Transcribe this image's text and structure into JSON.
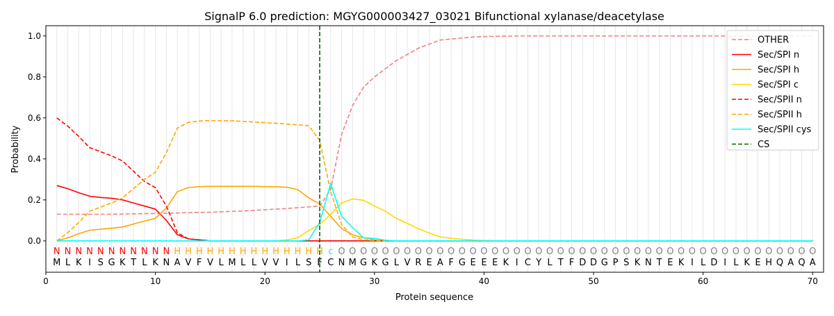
{
  "chart_data": {
    "type": "line",
    "title": "SignalP 6.0 prediction: MGYG000003427_03021 Bifunctional xylanase/deacetylase",
    "xlabel": "Protein sequence",
    "ylabel": "Probability",
    "xlim": [
      0,
      71
    ],
    "ylim": [
      -0.153,
      1.05
    ],
    "xticks": [
      0,
      10,
      20,
      30,
      40,
      50,
      60,
      70
    ],
    "yticks": [
      "0.0",
      "0.2",
      "0.4",
      "0.6",
      "0.8",
      "1.0"
    ],
    "legend_placement": "top-right",
    "sequence": [
      "M",
      "L",
      "K",
      "I",
      "S",
      "G",
      "K",
      "T",
      "L",
      "K",
      "N",
      "A",
      "V",
      "F",
      "V",
      "L",
      "M",
      "L",
      "L",
      "V",
      "V",
      "I",
      "L",
      "S",
      "F",
      "C",
      "N",
      "M",
      "G",
      "K",
      "G",
      "L",
      "V",
      "R",
      "E",
      "A",
      "F",
      "G",
      "E",
      "E",
      "E",
      "K",
      "I",
      "C",
      "Y",
      "L",
      "T",
      "F",
      "D",
      "D",
      "G",
      "P",
      "S",
      "K",
      "N",
      "T",
      "E",
      "K",
      "I",
      "L",
      "D",
      "I",
      "L",
      "K",
      "E",
      "H",
      "Q",
      "A",
      "Q",
      "A"
    ],
    "labels": [
      "N",
      "N",
      "N",
      "N",
      "N",
      "N",
      "N",
      "N",
      "N",
      "N",
      "N",
      "H",
      "H",
      "H",
      "H",
      "H",
      "H",
      "H",
      "H",
      "H",
      "H",
      "H",
      "H",
      "H",
      "H",
      "c",
      "O",
      "O",
      "O",
      "O",
      "O",
      "O",
      "O",
      "O",
      "O",
      "O",
      "O",
      "O",
      "O",
      "O",
      "O",
      "O",
      "O",
      "O",
      "O",
      "O",
      "O",
      "O",
      "O",
      "O",
      "O",
      "O",
      "O",
      "O",
      "O",
      "O",
      "O",
      "O",
      "O",
      "O",
      "O",
      "O",
      "O",
      "O",
      "O",
      "O",
      "O",
      "O",
      "O",
      "O"
    ],
    "label_colors": {
      "N": "#ff0000",
      "H": "#ffa500",
      "c": "#00ffff",
      "O": "#808080"
    },
    "cs_position": 25,
    "series": [
      {
        "name": "OTHER",
        "color": "#f08080",
        "dash": true,
        "values": [
          0.13,
          0.13,
          0.13,
          0.13,
          0.13,
          0.13,
          0.131,
          0.132,
          0.133,
          0.134,
          0.135,
          0.136,
          0.138,
          0.139,
          0.14,
          0.142,
          0.144,
          0.146,
          0.149,
          0.152,
          0.155,
          0.158,
          0.162,
          0.166,
          0.17,
          0.25,
          0.52,
          0.66,
          0.75,
          0.8,
          0.84,
          0.88,
          0.91,
          0.94,
          0.96,
          0.98,
          0.985,
          0.99,
          0.995,
          0.997,
          0.998,
          0.999,
          1,
          1,
          1,
          1,
          1,
          1,
          1,
          1,
          1,
          1,
          1,
          1,
          1,
          1,
          1,
          1,
          1,
          1,
          1,
          1,
          1,
          1,
          1,
          1,
          1,
          1,
          1,
          1
        ]
      },
      {
        "name": "Sec/SPI n",
        "color": "#ff0000",
        "dash": false,
        "values": [
          0.27,
          0.255,
          0.235,
          0.218,
          0.212,
          0.208,
          0.2,
          0.185,
          0.17,
          0.155,
          0.1,
          0.03,
          0.01,
          0.005,
          0,
          0,
          0,
          0,
          0,
          0,
          0,
          0,
          0,
          0,
          0,
          0,
          0,
          0,
          0,
          0,
          0,
          0,
          0,
          0,
          0,
          0,
          0,
          0,
          0,
          0,
          0,
          0,
          0,
          0,
          0,
          0,
          0,
          0,
          0,
          0,
          0,
          0,
          0,
          0,
          0,
          0,
          0,
          0,
          0,
          0,
          0,
          0,
          0,
          0,
          0,
          0,
          0,
          0,
          0,
          0
        ]
      },
      {
        "name": "Sec/SPI h",
        "color": "#ffa500",
        "dash": false,
        "values": [
          0,
          0.015,
          0.035,
          0.052,
          0.057,
          0.062,
          0.068,
          0.082,
          0.097,
          0.11,
          0.16,
          0.24,
          0.26,
          0.265,
          0.266,
          0.266,
          0.266,
          0.266,
          0.266,
          0.265,
          0.264,
          0.262,
          0.25,
          0.21,
          0.18,
          0.12,
          0.06,
          0.03,
          0.015,
          0.005,
          0,
          0,
          0,
          0,
          0,
          0,
          0,
          0,
          0,
          0,
          0,
          0,
          0,
          0,
          0,
          0,
          0,
          0,
          0,
          0,
          0,
          0,
          0,
          0,
          0,
          0,
          0,
          0,
          0,
          0,
          0,
          0,
          0,
          0,
          0,
          0,
          0,
          0,
          0,
          0
        ]
      },
      {
        "name": "Sec/SPI c",
        "color": "#ffd700",
        "dash": false,
        "values": [
          0,
          0,
          0,
          0,
          0,
          0,
          0,
          0,
          0,
          0,
          0,
          0,
          0,
          0,
          0,
          0,
          0,
          0,
          0,
          0,
          0,
          0.005,
          0.015,
          0.05,
          0.08,
          0.13,
          0.185,
          0.205,
          0.198,
          0.17,
          0.145,
          0.11,
          0.085,
          0.06,
          0.038,
          0.02,
          0.012,
          0.008,
          0.004,
          0.002,
          0,
          0,
          0,
          0,
          0,
          0,
          0,
          0,
          0,
          0,
          0,
          0,
          0,
          0,
          0,
          0,
          0,
          0,
          0,
          0,
          0,
          0,
          0,
          0,
          0,
          0,
          0,
          0,
          0,
          0
        ]
      },
      {
        "name": "Sec/SPII n",
        "color": "#ff0000",
        "dash": true,
        "values": [
          0.6,
          0.56,
          0.51,
          0.455,
          0.435,
          0.415,
          0.39,
          0.34,
          0.29,
          0.26,
          0.17,
          0.04,
          0.01,
          0.005,
          0,
          0,
          0,
          0,
          0,
          0,
          0,
          0,
          0,
          0,
          0,
          0,
          0,
          0,
          0,
          0,
          0,
          0,
          0,
          0,
          0,
          0,
          0,
          0,
          0,
          0,
          0,
          0,
          0,
          0,
          0,
          0,
          0,
          0,
          0,
          0,
          0,
          0,
          0,
          0,
          0,
          0,
          0,
          0,
          0,
          0,
          0,
          0,
          0,
          0,
          0,
          0,
          0,
          0,
          0,
          0
        ]
      },
      {
        "name": "Sec/SPII h",
        "color": "#ffa500",
        "dash": true,
        "values": [
          0,
          0.04,
          0.09,
          0.145,
          0.165,
          0.185,
          0.21,
          0.255,
          0.3,
          0.335,
          0.43,
          0.55,
          0.578,
          0.585,
          0.587,
          0.587,
          0.586,
          0.583,
          0.58,
          0.577,
          0.574,
          0.57,
          0.566,
          0.562,
          0.49,
          0.24,
          0.08,
          0.02,
          0.005,
          0.002,
          0,
          0,
          0,
          0,
          0,
          0,
          0,
          0,
          0,
          0,
          0,
          0,
          0,
          0,
          0,
          0,
          0,
          0,
          0,
          0,
          0,
          0,
          0,
          0,
          0,
          0,
          0,
          0,
          0,
          0,
          0,
          0,
          0,
          0,
          0,
          0,
          0,
          0,
          0,
          0
        ]
      },
      {
        "name": "Sec/SPII cys",
        "color": "#00ffff",
        "dash": false,
        "values": [
          0,
          0,
          0,
          0,
          0,
          0,
          0,
          0,
          0,
          0,
          0,
          0,
          0,
          0,
          0,
          0,
          0,
          0,
          0,
          0,
          0,
          0,
          0,
          0.005,
          0.09,
          0.28,
          0.12,
          0.065,
          0.015,
          0.012,
          0.003,
          0,
          0,
          0,
          0,
          0,
          0,
          0,
          0,
          0,
          0,
          0,
          0,
          0,
          0,
          0,
          0,
          0,
          0,
          0,
          0,
          0,
          0,
          0,
          0,
          0,
          0,
          0,
          0,
          0,
          0,
          0,
          0,
          0,
          0,
          0,
          0,
          0,
          0,
          0
        ]
      }
    ],
    "cs_legend": {
      "name": "CS",
      "color": "#006400"
    }
  }
}
